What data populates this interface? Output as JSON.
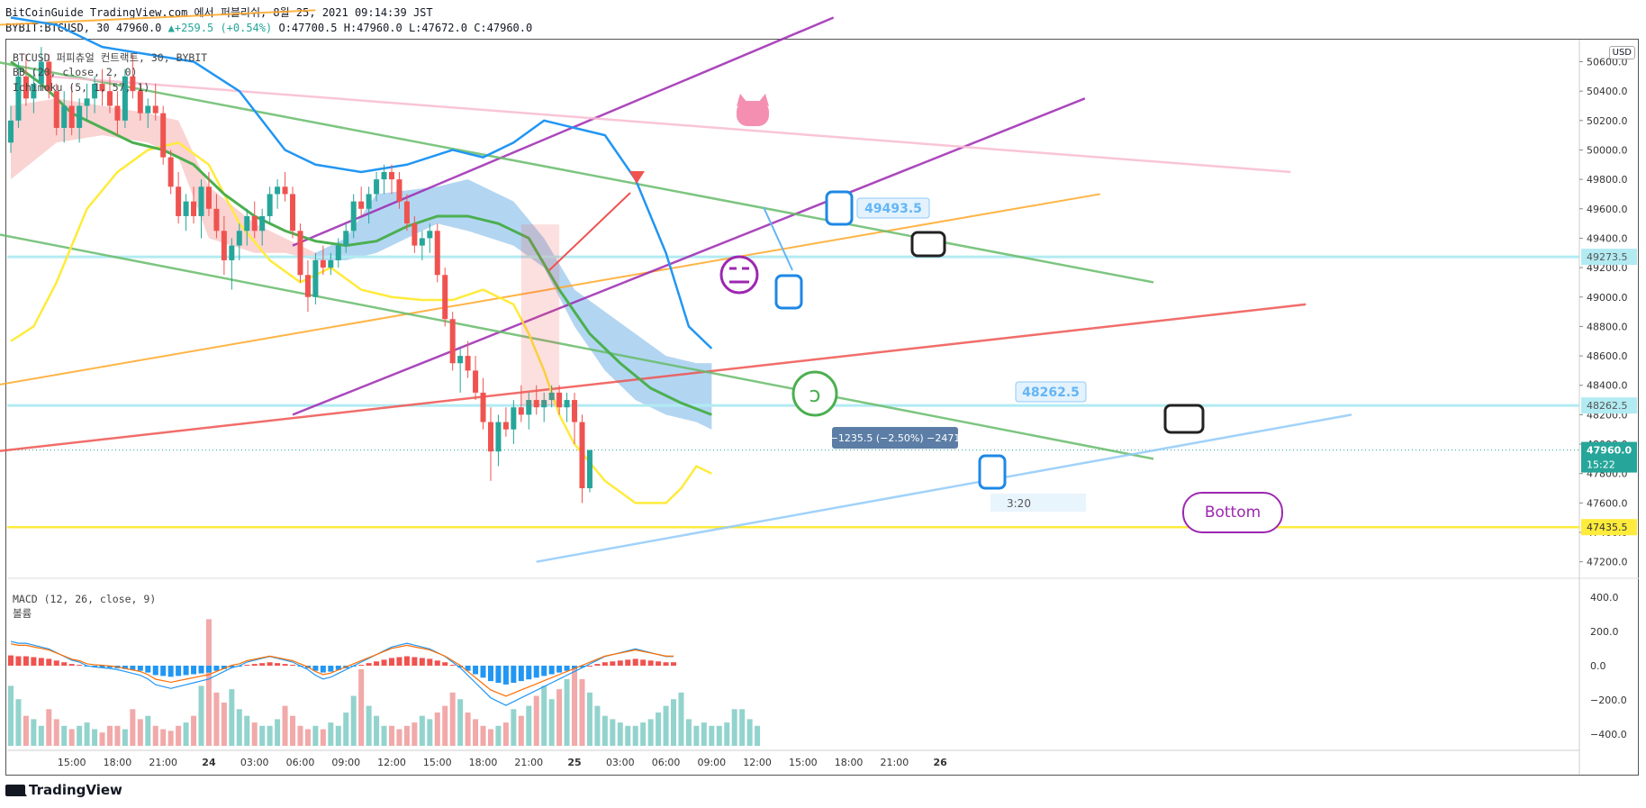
{
  "header": {
    "line1": "BitCoinGuide TradingView.com 에서 퍼블리쉬, 8월 25, 2021 09:14:39 JST",
    "symbol": "BYBIT:BTCUSD, 30",
    "last": "47960.0",
    "change": "▲+259.5 (+0.54%)",
    "ohlc": "O:47700.5 H:47960.0 L:47672.0 C:47960.0"
  },
  "legends": {
    "main": "BTCUSD 퍼피츄얼 컨트랙트, 30, BYBIT",
    "bb": "BB (20, close, 2, 0)",
    "ichimoku": "Ichimoku (5, 1, 57, 1)",
    "macd": "MACD (12, 26, close, 9)",
    "volume": "볼륨"
  },
  "currency": "USD",
  "annotations": {
    "box_top": "49493.5",
    "box_bottom": "48262.5",
    "measure": "−1235.5 (−2.50%) −2471",
    "time_box": "3:20",
    "bubble": "Bottom"
  },
  "price_labels": {
    "level1": "49273.5",
    "level2": "48262.5",
    "current": "47960.0",
    "countdown": "15:22",
    "level3": "47435.5"
  },
  "footer": {
    "logo": "TradingView"
  },
  "colors": {
    "up": "#26a69a",
    "down": "#ef5350",
    "bb_band": "#2196f3",
    "bb_basis": "#ffeb3b",
    "ichimoku_base": "#4caf50",
    "kumo_bull": "#a5d6f7",
    "kumo_bear": "#f8c4c4",
    "macd_line": "#2196f3",
    "signal_line": "#ff6d00",
    "trend_purple": "#9c27b0",
    "trend_red": "#ef5350",
    "trend_green": "#66bb6a",
    "trend_orange": "#ffa726",
    "trend_pink": "#f8bbd0",
    "trend_blue": "#90caf9",
    "hline_yellow": "#ffeb3b",
    "hline_cyan": "#b2ebf2"
  },
  "chart_data": {
    "type": "candlestick",
    "ylim": [
      47100,
      50750
    ],
    "y_ticks": [
      47200,
      47400,
      47600,
      47800,
      48000,
      48200,
      48400,
      48600,
      48800,
      49000,
      49200,
      49400,
      49600,
      49800,
      50000,
      50200,
      50400,
      50600
    ],
    "y_tick_labels": [
      "47200.0",
      "47400.0",
      "47600.0",
      "47800.0",
      "48000.0",
      "48200.0",
      "48400.0",
      "48600.0",
      "48800.0",
      "49000.0",
      "49200.0",
      "49400.0",
      "49600.0",
      "49800.0",
      "50000.0",
      "50200.0",
      "50400.0",
      "50600.0"
    ],
    "x_tick_labels": [
      "15:00",
      "18:00",
      "21:00",
      "24",
      "03:00",
      "06:00",
      "09:00",
      "12:00",
      "15:00",
      "18:00",
      "21:00",
      "25",
      "03:00",
      "06:00",
      "09:00",
      "12:00",
      "15:00",
      "18:00",
      "21:00",
      "26"
    ],
    "x_tick_bars": [
      8,
      14,
      20,
      26,
      32,
      38,
      44,
      50,
      56,
      62,
      68,
      74,
      80,
      86,
      92,
      98,
      104,
      110,
      116,
      122
    ],
    "candles": [
      [
        50050,
        50300,
        49980,
        50200
      ],
      [
        50200,
        50600,
        50150,
        50500
      ],
      [
        50500,
        50650,
        50300,
        50350
      ],
      [
        50350,
        50550,
        50250,
        50450
      ],
      [
        50450,
        50700,
        50400,
        50600
      ],
      [
        50600,
        50650,
        50350,
        50400
      ],
      [
        50400,
        50450,
        50100,
        50150
      ],
      [
        50150,
        50400,
        50050,
        50300
      ],
      [
        50300,
        50450,
        50100,
        50150
      ],
      [
        50150,
        50350,
        50050,
        50300
      ],
      [
        50300,
        50450,
        50200,
        50350
      ],
      [
        50350,
        50500,
        50250,
        50450
      ],
      [
        50450,
        50550,
        50300,
        50400
      ],
      [
        50400,
        50500,
        50250,
        50300
      ],
      [
        50300,
        50400,
        50100,
        50200
      ],
      [
        50200,
        50550,
        50150,
        50500
      ],
      [
        50500,
        50650,
        50350,
        50400
      ],
      [
        50400,
        50450,
        50200,
        50250
      ],
      [
        50250,
        50350,
        50150,
        50300
      ],
      [
        50300,
        50450,
        50200,
        50250
      ],
      [
        50250,
        50300,
        49900,
        49950
      ],
      [
        49950,
        50000,
        49700,
        49750
      ],
      [
        49750,
        49850,
        49500,
        49550
      ],
      [
        49550,
        49700,
        49450,
        49650
      ],
      [
        49650,
        49750,
        49500,
        49550
      ],
      [
        49550,
        49800,
        49400,
        49750
      ],
      [
        49750,
        49850,
        49550,
        49600
      ],
      [
        49600,
        49700,
        49400,
        49450
      ],
      [
        49450,
        49550,
        49150,
        49250
      ],
      [
        49250,
        49400,
        49050,
        49350
      ],
      [
        49350,
        49500,
        49250,
        49450
      ],
      [
        49450,
        49600,
        49350,
        49550
      ],
      [
        49550,
        49650,
        49400,
        49450
      ],
      [
        49450,
        49600,
        49350,
        49550
      ],
      [
        49550,
        49750,
        49500,
        49700
      ],
      [
        49700,
        49800,
        49600,
        49750
      ],
      [
        49750,
        49850,
        49650,
        49700
      ],
      [
        49700,
        49750,
        49400,
        49450
      ],
      [
        49450,
        49500,
        49100,
        49150
      ],
      [
        49150,
        49250,
        48900,
        49000
      ],
      [
        49000,
        49300,
        48950,
        49250
      ],
      [
        49250,
        49350,
        49150,
        49200
      ],
      [
        49200,
        49300,
        49150,
        49250
      ],
      [
        49250,
        49400,
        49200,
        49350
      ],
      [
        49350,
        49500,
        49300,
        49450
      ],
      [
        49450,
        49700,
        49400,
        49650
      ],
      [
        49650,
        49750,
        49550,
        49600
      ],
      [
        49600,
        49750,
        49500,
        49700
      ],
      [
        49700,
        49850,
        49650,
        49800
      ],
      [
        49800,
        49900,
        49700,
        49850
      ],
      [
        49850,
        49900,
        49700,
        49800
      ],
      [
        49800,
        49850,
        49600,
        49650
      ],
      [
        49650,
        49700,
        49450,
        49500
      ],
      [
        49500,
        49550,
        49300,
        49350
      ],
      [
        49350,
        49450,
        49250,
        49400
      ],
      [
        49400,
        49500,
        49300,
        49450
      ],
      [
        49450,
        49500,
        49100,
        49150
      ],
      [
        49150,
        49200,
        48800,
        48850
      ],
      [
        48850,
        48900,
        48500,
        48550
      ],
      [
        48550,
        48650,
        48350,
        48600
      ],
      [
        48600,
        48700,
        48450,
        48500
      ],
      [
        48500,
        48600,
        48300,
        48350
      ],
      [
        48350,
        48450,
        48100,
        48150
      ],
      [
        48150,
        48250,
        47750,
        47950
      ],
      [
        47950,
        48200,
        47850,
        48150
      ],
      [
        48150,
        48250,
        48050,
        48100
      ],
      [
        48100,
        48300,
        48000,
        48250
      ],
      [
        48250,
        48400,
        48150,
        48200
      ],
      [
        48200,
        48350,
        48100,
        48300
      ],
      [
        48300,
        48400,
        48200,
        48250
      ],
      [
        48250,
        48350,
        48150,
        48300
      ],
      [
        48300,
        48400,
        48250,
        48350
      ],
      [
        48350,
        48400,
        48200,
        48250
      ],
      [
        48250,
        48350,
        48150,
        48300
      ],
      [
        48300,
        48350,
        48000,
        48150
      ],
      [
        48150,
        48200,
        47600,
        47700
      ],
      [
        47700,
        47960,
        47672,
        47960
      ]
    ],
    "bb_upper": [
      [
        0,
        50900
      ],
      [
        6,
        50850
      ],
      [
        12,
        50700
      ],
      [
        18,
        50650
      ],
      [
        24,
        50600
      ],
      [
        30,
        50400
      ],
      [
        36,
        50000
      ],
      [
        40,
        49900
      ],
      [
        46,
        49850
      ],
      [
        52,
        49900
      ],
      [
        58,
        50000
      ],
      [
        62,
        49950
      ],
      [
        66,
        50050
      ],
      [
        70,
        50200
      ],
      [
        74,
        50150
      ],
      [
        78,
        50100
      ],
      [
        82,
        49800
      ],
      [
        86,
        49300
      ],
      [
        89,
        48800
      ],
      [
        92,
        48650
      ]
    ],
    "bb_lower": [
      [
        0,
        48700
      ],
      [
        3,
        48800
      ],
      [
        6,
        49100
      ],
      [
        10,
        49600
      ],
      [
        14,
        49850
      ],
      [
        18,
        50000
      ],
      [
        22,
        50050
      ],
      [
        26,
        49900
      ],
      [
        30,
        49500
      ],
      [
        34,
        49250
      ],
      [
        38,
        49100
      ],
      [
        42,
        49200
      ],
      [
        46,
        49050
      ],
      [
        50,
        49000
      ],
      [
        54,
        48980
      ],
      [
        58,
        48980
      ],
      [
        62,
        49050
      ],
      [
        66,
        48950
      ],
      [
        68,
        48750
      ],
      [
        70,
        48500
      ],
      [
        72,
        48200
      ],
      [
        74,
        48000
      ],
      [
        78,
        47750
      ],
      [
        82,
        47600
      ],
      [
        86,
        47600
      ],
      [
        88,
        47700
      ],
      [
        90,
        47850
      ],
      [
        92,
        47800
      ]
    ],
    "bb_basis": [
      [
        0,
        50600
      ],
      [
        4,
        50450
      ],
      [
        8,
        50250
      ],
      [
        12,
        50150
      ],
      [
        16,
        50050
      ],
      [
        20,
        50000
      ],
      [
        24,
        49900
      ],
      [
        28,
        49700
      ],
      [
        32,
        49550
      ],
      [
        36,
        49450
      ],
      [
        40,
        49380
      ],
      [
        44,
        49350
      ],
      [
        48,
        49380
      ],
      [
        52,
        49480
      ],
      [
        56,
        49550
      ],
      [
        60,
        49550
      ],
      [
        64,
        49500
      ],
      [
        68,
        49400
      ],
      [
        72,
        49050
      ],
      [
        76,
        48750
      ],
      [
        80,
        48550
      ],
      [
        84,
        48380
      ],
      [
        88,
        48280
      ],
      [
        92,
        48200
      ]
    ],
    "kumo_top": [
      [
        0,
        50300
      ],
      [
        6,
        50350
      ],
      [
        12,
        50300
      ],
      [
        18,
        50250
      ],
      [
        22,
        50200
      ],
      [
        26,
        49750
      ],
      [
        32,
        49500
      ],
      [
        36,
        49400
      ],
      [
        40,
        49300
      ],
      [
        44,
        49400
      ],
      [
        48,
        49700
      ],
      [
        56,
        49750
      ],
      [
        60,
        49800
      ],
      [
        66,
        49650
      ],
      [
        70,
        49400
      ],
      [
        74,
        49050
      ],
      [
        78,
        48900
      ],
      [
        82,
        48750
      ],
      [
        86,
        48600
      ],
      [
        90,
        48550
      ],
      [
        92,
        48550
      ]
    ],
    "kumo_bottom": [
      [
        0,
        49800
      ],
      [
        6,
        50050
      ],
      [
        12,
        50100
      ],
      [
        18,
        50050
      ],
      [
        22,
        49950
      ],
      [
        26,
        49400
      ],
      [
        32,
        49300
      ],
      [
        36,
        49300
      ],
      [
        40,
        49250
      ],
      [
        44,
        49250
      ],
      [
        48,
        49300
      ],
      [
        56,
        49500
      ],
      [
        60,
        49450
      ],
      [
        66,
        49350
      ],
      [
        70,
        49200
      ],
      [
        74,
        48800
      ],
      [
        78,
        48500
      ],
      [
        82,
        48300
      ],
      [
        86,
        48200
      ],
      [
        90,
        48150
      ],
      [
        92,
        48100
      ]
    ],
    "macd_hist": [
      60,
      55,
      55,
      50,
      45,
      40,
      30,
      20,
      10,
      5,
      -5,
      -8,
      -10,
      -12,
      -15,
      -20,
      -25,
      -30,
      -40,
      -55,
      -60,
      -65,
      -60,
      -55,
      -50,
      -45,
      -40,
      -30,
      -20,
      -10,
      -5,
      5,
      10,
      15,
      20,
      15,
      10,
      5,
      -5,
      -15,
      -30,
      -40,
      -35,
      -25,
      -15,
      -5,
      5,
      15,
      25,
      35,
      45,
      50,
      55,
      50,
      45,
      40,
      30,
      20,
      5,
      -10,
      -30,
      -50,
      -70,
      -90,
      -100,
      -110,
      -100,
      -90,
      -80,
      -70,
      -60,
      -50,
      -40,
      -30,
      -20,
      -10,
      0,
      10,
      20,
      25,
      30,
      35,
      40,
      35,
      30,
      25,
      20,
      20
    ],
    "volume": [
      180,
      140,
      90,
      80,
      60,
      110,
      80,
      60,
      50,
      60,
      70,
      50,
      40,
      60,
      60,
      50,
      110,
      80,
      90,
      60,
      50,
      45,
      60,
      70,
      90,
      180,
      380,
      160,
      130,
      170,
      110,
      90,
      70,
      60,
      60,
      80,
      120,
      90,
      60,
      50,
      60,
      50,
      70,
      60,
      100,
      150,
      230,
      120,
      90,
      60,
      60,
      50,
      60,
      70,
      90,
      80,
      100,
      120,
      160,
      140,
      100,
      80,
      60,
      50,
      60,
      70,
      110,
      90,
      120,
      150,
      180,
      140,
      170,
      200,
      230,
      200,
      160,
      120,
      90,
      80,
      70,
      60,
      60,
      70,
      80,
      100,
      120,
      140,
      160,
      80,
      60,
      70,
      60,
      60,
      70,
      110,
      110,
      80,
      60
    ]
  }
}
